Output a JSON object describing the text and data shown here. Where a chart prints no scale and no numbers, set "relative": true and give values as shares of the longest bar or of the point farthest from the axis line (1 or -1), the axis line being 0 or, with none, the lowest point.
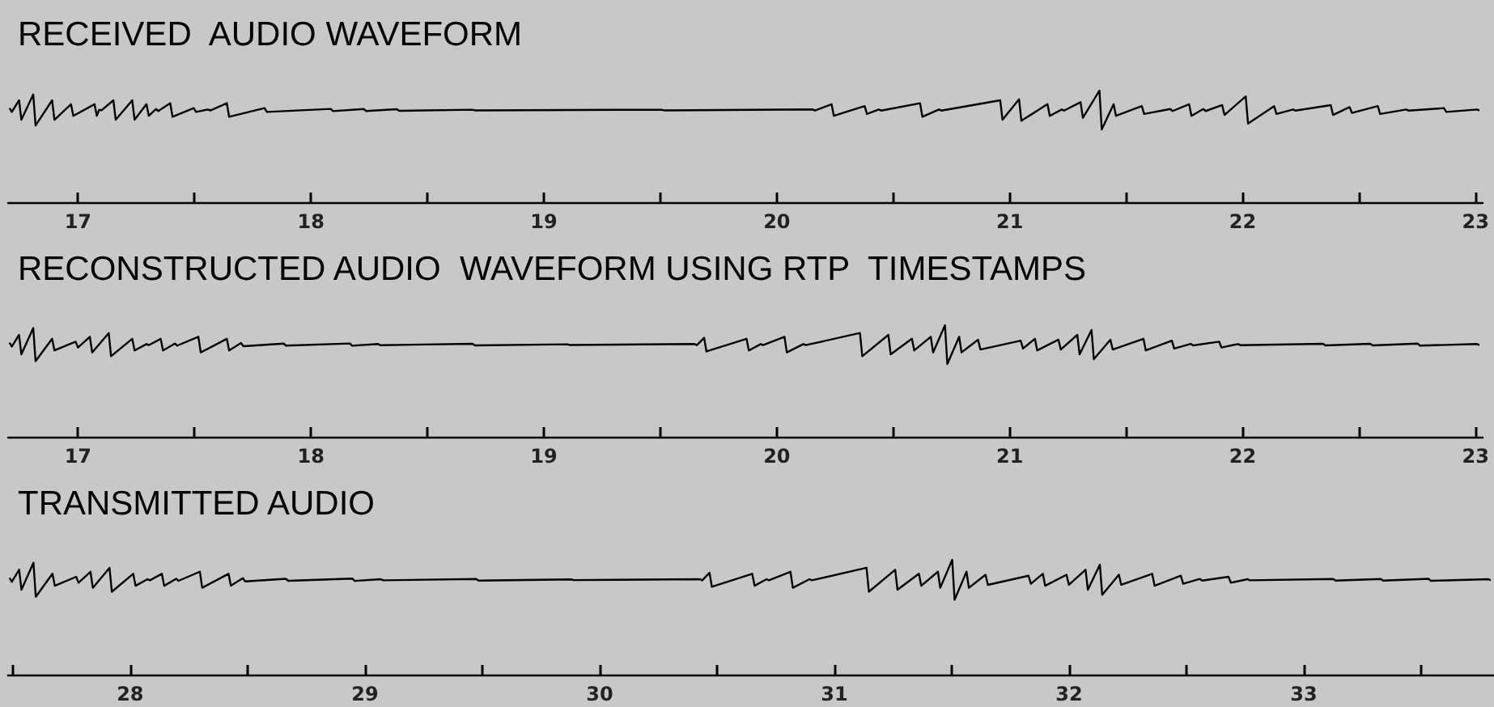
{
  "chart_data": [
    {
      "type": "line",
      "title": "RECEIVED  AUDIO WAVEFORM",
      "relative": true,
      "tick_labels": "x",
      "grid": false,
      "marker": "none",
      "x": [
        16.706,
        16.716,
        16.747,
        16.757,
        16.808,
        16.818,
        16.889,
        16.899,
        16.97,
        16.98,
        17.071,
        17.081,
        17.091,
        17.101,
        17.152,
        17.162,
        17.233,
        17.243,
        17.294,
        17.304,
        17.335,
        17.345,
        17.396,
        17.406,
        17.497,
        17.507,
        17.558,
        17.568,
        17.639,
        17.649,
        17.801,
        17.811,
        18.085,
        18.095,
        18.227,
        18.237,
        18.369,
        18.379,
        18.694,
        18.704,
        19.505,
        19.515,
        20.154,
        20.164,
        20.235,
        20.245,
        20.377,
        20.387,
        20.438,
        20.448,
        20.615,
        20.625,
        20.696,
        20.706,
        20.959,
        20.969,
        21.04,
        21.05,
        21.162,
        21.172,
        21.223,
        21.233,
        21.304,
        21.314,
        21.385,
        21.395,
        21.446,
        21.456,
        21.567,
        21.577,
        21.689,
        21.699,
        21.77,
        21.78,
        21.831,
        21.841,
        21.912,
        21.922,
        22.013,
        22.023,
        22.135,
        22.145,
        22.216,
        22.226,
        22.378,
        22.388,
        22.459,
        22.469,
        22.58,
        22.59,
        22.702,
        22.712,
        22.864,
        22.874,
        23.006,
        23.016
      ],
      "xlim": [
        16.7,
        23.03
      ],
      "xticks": [
        17,
        {
          "value": 17.5,
          "label": null
        },
        18,
        {
          "value": 18.5,
          "label": null
        },
        19,
        {
          "value": 19.5,
          "label": null
        },
        20,
        {
          "value": 20.5,
          "label": null
        },
        21,
        {
          "value": 21.5,
          "label": null
        },
        22,
        {
          "value": 22.5,
          "label": null
        },
        23
      ],
      "series": [
        {
          "color": "#000000",
          "values": [
            0.843,
            0.809,
            0.913,
            0.739,
            0.965,
            0.687,
            0.913,
            0.739,
            0.878,
            0.774,
            0.878,
            0.774,
            0.829,
            0.823,
            0.913,
            0.739,
            0.913,
            0.739,
            0.878,
            0.774,
            0.835,
            0.817,
            0.887,
            0.765,
            0.843,
            0.809,
            0.831,
            0.821,
            0.887,
            0.765,
            0.843,
            0.809,
            0.836,
            0.816,
            0.835,
            0.817,
            0.833,
            0.819,
            0.829,
            0.823,
            0.829,
            0.823,
            0.831,
            0.821,
            0.878,
            0.774,
            0.861,
            0.791,
            0.831,
            0.821,
            0.887,
            0.765,
            0.831,
            0.821,
            0.913,
            0.739,
            0.922,
            0.73,
            0.878,
            0.774,
            0.831,
            0.821,
            0.896,
            0.756,
            1,
            0.652,
            0.878,
            0.774,
            0.861,
            0.791,
            0.835,
            0.817,
            0.878,
            0.774,
            0.835,
            0.817,
            0.87,
            0.782,
            0.948,
            0.704,
            0.861,
            0.791,
            0.831,
            0.821,
            0.87,
            0.782,
            0.852,
            0.8,
            0.861,
            0.791,
            0.831,
            0.821,
            0.843,
            0.809,
            0.831,
            0.821
          ]
        }
      ]
    },
    {
      "type": "line",
      "title": "RECONSTRUCTED AUDIO  WAVEFORM USING RTP  TIMESTAMPS",
      "relative": true,
      "tick_labels": "x",
      "grid": false,
      "marker": "none",
      "x": [
        16.706,
        16.716,
        16.747,
        16.757,
        16.808,
        16.818,
        16.889,
        16.899,
        16.99,
        17.0,
        17.051,
        17.061,
        17.132,
        17.142,
        17.233,
        17.243,
        17.294,
        17.304,
        17.355,
        17.365,
        17.416,
        17.426,
        17.517,
        17.527,
        17.639,
        17.649,
        17.7,
        17.71,
        17.883,
        17.893,
        18.167,
        18.177,
        18.288,
        18.298,
        18.694,
        18.704,
        19.1,
        19.11,
        19.647,
        19.657,
        19.688,
        19.698,
        19.87,
        19.88,
        19.931,
        19.941,
        20.033,
        20.043,
        20.114,
        20.124,
        20.357,
        20.367,
        20.479,
        20.489,
        20.58,
        20.59,
        20.661,
        20.671,
        20.722,
        20.732,
        20.783,
        20.793,
        20.864,
        20.874,
        21.047,
        21.057,
        21.108,
        21.118,
        21.209,
        21.219,
        21.29,
        21.3,
        21.351,
        21.361,
        21.432,
        21.442,
        21.574,
        21.584,
        21.696,
        21.706,
        21.777,
        21.787,
        21.899,
        21.909,
        21.98,
        21.99,
        22.345,
        22.355,
        22.548,
        22.558,
        22.751,
        22.761,
        23.006,
        23.016
      ],
      "xlim": [
        16.7,
        23.03
      ],
      "xticks": [
        17,
        {
          "value": 17.5,
          "label": null
        },
        18,
        {
          "value": 18.5,
          "label": null
        },
        19,
        {
          "value": 19.5,
          "label": null
        },
        20,
        {
          "value": 20.5,
          "label": null
        },
        21,
        {
          "value": 21.5,
          "label": null
        },
        22,
        {
          "value": 22.5,
          "label": null
        },
        23
      ],
      "series": [
        {
          "color": "#000000",
          "values": [
            0.843,
            0.809,
            0.913,
            0.739,
            0.974,
            0.678,
            0.878,
            0.774,
            0.852,
            0.8,
            0.896,
            0.756,
            0.93,
            0.722,
            0.878,
            0.774,
            0.831,
            0.821,
            0.878,
            0.774,
            0.835,
            0.817,
            0.896,
            0.756,
            0.878,
            0.774,
            0.84,
            0.812,
            0.835,
            0.817,
            0.836,
            0.816,
            0.831,
            0.821,
            0.833,
            0.819,
            0.829,
            0.823,
            0.831,
            0.821,
            0.887,
            0.765,
            0.878,
            0.774,
            0.831,
            0.821,
            0.896,
            0.756,
            0.831,
            0.821,
            0.93,
            0.722,
            0.913,
            0.739,
            0.878,
            0.774,
            0.896,
            0.756,
            1,
            0.652,
            0.896,
            0.756,
            0.87,
            0.782,
            0.861,
            0.791,
            0.878,
            0.774,
            0.87,
            0.782,
            0.913,
            0.739,
            0.957,
            0.695,
            0.87,
            0.782,
            0.878,
            0.774,
            0.861,
            0.791,
            0.833,
            0.819,
            0.852,
            0.8,
            0.831,
            0.821,
            0.833,
            0.819,
            0.833,
            0.819,
            0.835,
            0.817,
            0.831,
            0.821
          ]
        }
      ]
    },
    {
      "type": "line",
      "title": "TRANSMITTED AUDIO",
      "relative": true,
      "tick_labels": "x",
      "grid": false,
      "marker": "none",
      "x": [
        27.486,
        27.496,
        27.527,
        27.537,
        27.588,
        27.598,
        27.669,
        27.679,
        27.77,
        27.78,
        27.831,
        27.841,
        27.912,
        27.922,
        28.013,
        28.023,
        28.074,
        28.084,
        28.135,
        28.145,
        28.196,
        28.206,
        28.297,
        28.307,
        28.419,
        28.429,
        28.48,
        28.49,
        28.663,
        28.673,
        28.947,
        28.957,
        29.068,
        29.078,
        29.474,
        29.484,
        29.88,
        29.89,
        30.427,
        30.437,
        30.468,
        30.478,
        30.65,
        30.66,
        30.711,
        30.721,
        30.813,
        30.823,
        30.894,
        30.904,
        31.137,
        31.147,
        31.259,
        31.269,
        31.36,
        31.37,
        31.441,
        31.451,
        31.502,
        31.512,
        31.563,
        31.573,
        31.644,
        31.654,
        31.827,
        31.837,
        31.888,
        31.898,
        31.989,
        31.999,
        32.07,
        32.08,
        32.131,
        32.141,
        32.212,
        32.222,
        32.354,
        32.364,
        32.476,
        32.486,
        32.557,
        32.567,
        32.679,
        32.689,
        32.76,
        32.77,
        33.125,
        33.135,
        33.328,
        33.338,
        33.531,
        33.541,
        33.786,
        33.796
      ],
      "xlim": [
        27.48,
        33.81
      ],
      "xticks": [
        {
          "value": 27.5,
          "label": null
        },
        28,
        {
          "value": 28.5,
          "label": null
        },
        29,
        {
          "value": 29.5,
          "label": null
        },
        30,
        {
          "value": 30.5,
          "label": null
        },
        31,
        {
          "value": 31.5,
          "label": null
        },
        32,
        {
          "value": 32.5,
          "label": null
        },
        33,
        {
          "value": 33.5,
          "label": null
        }
      ],
      "series": [
        {
          "color": "#000000",
          "values": [
            0.843,
            0.809,
            0.913,
            0.739,
            0.974,
            0.678,
            0.878,
            0.774,
            0.852,
            0.8,
            0.896,
            0.756,
            0.93,
            0.722,
            0.878,
            0.774,
            0.831,
            0.821,
            0.878,
            0.774,
            0.835,
            0.817,
            0.896,
            0.756,
            0.878,
            0.774,
            0.84,
            0.812,
            0.835,
            0.817,
            0.836,
            0.816,
            0.831,
            0.821,
            0.833,
            0.819,
            0.829,
            0.823,
            0.831,
            0.821,
            0.887,
            0.765,
            0.878,
            0.774,
            0.831,
            0.821,
            0.896,
            0.756,
            0.831,
            0.821,
            0.93,
            0.722,
            0.913,
            0.739,
            0.878,
            0.774,
            0.896,
            0.756,
            1,
            0.652,
            0.896,
            0.756,
            0.87,
            0.782,
            0.861,
            0.791,
            0.878,
            0.774,
            0.87,
            0.782,
            0.913,
            0.739,
            0.957,
            0.695,
            0.87,
            0.782,
            0.878,
            0.774,
            0.861,
            0.791,
            0.833,
            0.819,
            0.852,
            0.8,
            0.831,
            0.821,
            0.833,
            0.819,
            0.833,
            0.819,
            0.835,
            0.817,
            0.831,
            0.821
          ]
        }
      ]
    }
  ]
}
